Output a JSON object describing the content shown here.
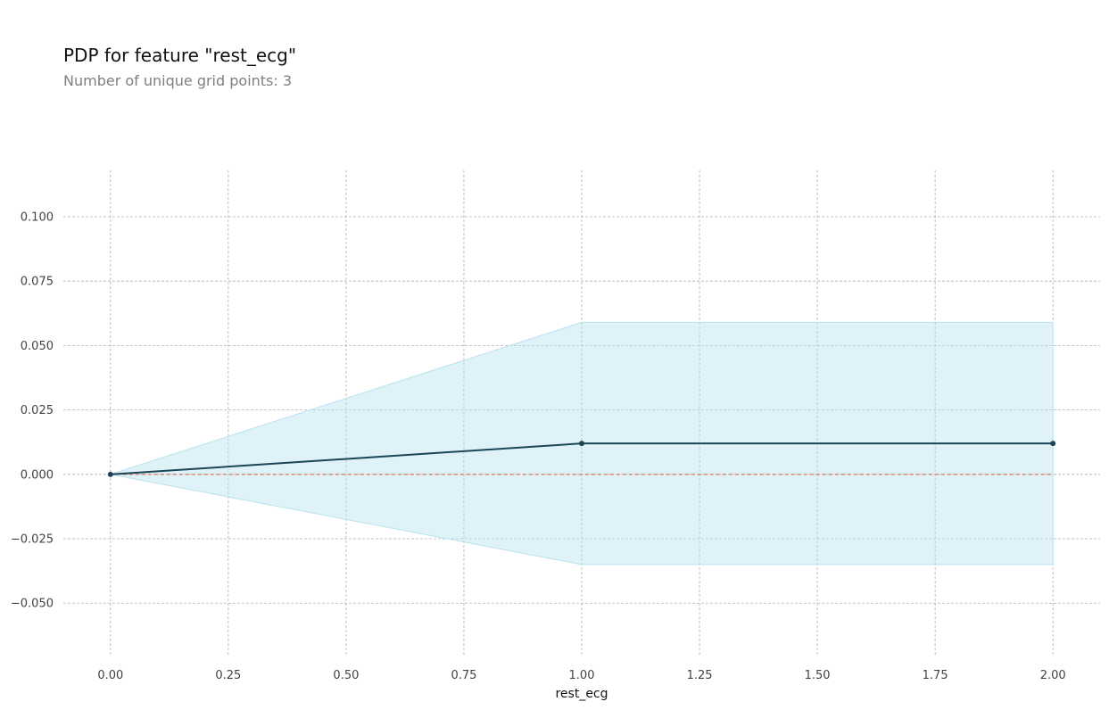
{
  "title": "PDP for feature \"rest_ecg\"",
  "subtitle": "Number of unique grid points: 3",
  "chart_data": {
    "type": "line",
    "title": "PDP for feature \"rest_ecg\"",
    "subtitle": "Number of unique grid points: 3",
    "xlabel": "rest_ecg",
    "ylabel": "",
    "x": [
      0,
      1,
      2
    ],
    "series": [
      {
        "values": [
          0.0,
          0.012,
          0.012
        ],
        "color": "#1a4657"
      }
    ],
    "band": {
      "upper": [
        0.0,
        0.059,
        0.059
      ],
      "lower": [
        0.0,
        -0.035,
        -0.035
      ],
      "color": "#b9e2ef"
    },
    "baseline": {
      "value": 0.0,
      "color": "#e0694a",
      "style": "dashed"
    },
    "xlim": [
      -0.1,
      2.1
    ],
    "ylim": [
      -0.07,
      0.118
    ],
    "xticks": [
      0.0,
      0.25,
      0.5,
      0.75,
      1.0,
      1.25,
      1.5,
      1.75,
      2.0
    ],
    "xtick_labels": [
      "0.00",
      "0.25",
      "0.50",
      "0.75",
      "1.00",
      "1.25",
      "1.50",
      "1.75",
      "2.00"
    ],
    "yticks": [
      -0.05,
      -0.025,
      0.0,
      0.025,
      0.05,
      0.075,
      0.1
    ],
    "ytick_labels": [
      "−0.050",
      "−0.025",
      "0.000",
      "0.025",
      "0.050",
      "0.075",
      "0.100"
    ],
    "grid": true,
    "grid_color": "#b0b0b0",
    "legend": false
  }
}
